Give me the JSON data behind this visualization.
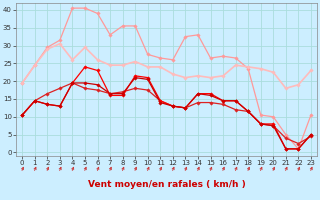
{
  "title": "",
  "xlabel": "Vent moyen/en rafales ( km/h )",
  "background_color": "#cceeff",
  "grid_color": "#aadddd",
  "x_ticks": [
    0,
    1,
    2,
    3,
    4,
    5,
    6,
    7,
    8,
    9,
    10,
    11,
    12,
    13,
    14,
    15,
    16,
    17,
    18,
    19,
    20,
    21,
    22,
    23
  ],
  "ylim": [
    -1,
    42
  ],
  "yticks": [
    0,
    5,
    10,
    15,
    20,
    25,
    30,
    35,
    40
  ],
  "lines": [
    {
      "x": [
        0,
        1,
        2,
        3,
        4,
        5,
        6,
        7,
        8,
        9,
        10,
        11,
        12,
        13,
        14,
        15,
        16,
        17,
        18,
        19,
        20,
        21,
        22,
        23
      ],
      "y": [
        19.5,
        24.5,
        29.5,
        31.5,
        40.5,
        40.5,
        39.0,
        33.0,
        35.5,
        35.5,
        27.5,
        26.5,
        26.0,
        32.5,
        33.0,
        26.5,
        27.0,
        26.5,
        23.5,
        10.5,
        10.0,
        5.0,
        1.0,
        10.5
      ],
      "color": "#ff9999",
      "linewidth": 0.9,
      "marker": "D",
      "markersize": 1.8
    },
    {
      "x": [
        0,
        1,
        2,
        3,
        4,
        5,
        6,
        7,
        8,
        9,
        10,
        11,
        12,
        13,
        14,
        15,
        16,
        17,
        18,
        19,
        20,
        21,
        22,
        23
      ],
      "y": [
        19.5,
        24.5,
        29.0,
        30.5,
        26.0,
        29.5,
        26.0,
        24.5,
        24.5,
        25.5,
        24.0,
        24.0,
        22.0,
        21.0,
        21.5,
        21.0,
        21.5,
        24.5,
        24.0,
        23.5,
        22.5,
        18.0,
        19.0,
        23.0
      ],
      "color": "#ffbbbb",
      "linewidth": 1.2,
      "marker": "D",
      "markersize": 1.8
    },
    {
      "x": [
        0,
        1,
        2,
        3,
        4,
        5,
        6,
        7,
        8,
        9,
        10,
        11,
        12,
        13,
        14,
        15,
        16,
        17,
        18,
        19,
        20,
        21,
        22,
        23
      ],
      "y": [
        10.5,
        14.5,
        16.5,
        18.0,
        19.5,
        18.0,
        17.5,
        16.5,
        17.0,
        18.0,
        17.5,
        14.5,
        13.0,
        12.5,
        14.0,
        14.0,
        13.5,
        12.0,
        11.5,
        8.0,
        7.5,
        4.0,
        2.5,
        4.5
      ],
      "color": "#dd2222",
      "linewidth": 0.9,
      "marker": "D",
      "markersize": 1.8
    },
    {
      "x": [
        0,
        1,
        2,
        3,
        4,
        5,
        6,
        7,
        8,
        9,
        10,
        11,
        12,
        13,
        14,
        15,
        16,
        17,
        18,
        19,
        20,
        21,
        22,
        23
      ],
      "y": [
        10.5,
        14.5,
        13.5,
        13.0,
        19.5,
        24.0,
        23.0,
        16.0,
        16.0,
        21.5,
        21.0,
        14.5,
        13.0,
        12.5,
        16.5,
        16.5,
        14.5,
        14.5,
        11.5,
        8.0,
        8.0,
        1.0,
        1.0,
        5.0
      ],
      "color": "#ff0000",
      "linewidth": 0.9,
      "marker": "D",
      "markersize": 1.8
    },
    {
      "x": [
        0,
        1,
        2,
        3,
        4,
        5,
        6,
        7,
        8,
        9,
        10,
        11,
        12,
        13,
        14,
        15,
        16,
        17,
        18,
        19,
        20,
        21,
        22,
        23
      ],
      "y": [
        10.5,
        14.5,
        13.5,
        13.0,
        19.5,
        19.5,
        19.0,
        16.5,
        16.5,
        21.0,
        20.5,
        14.0,
        13.0,
        12.5,
        16.5,
        16.0,
        14.5,
        14.5,
        11.5,
        8.0,
        7.5,
        1.0,
        1.0,
        5.0
      ],
      "color": "#cc0000",
      "linewidth": 0.9,
      "marker": "D",
      "markersize": 1.8
    }
  ],
  "arrow_color": "#cc3333",
  "tick_fontsize": 5,
  "label_fontsize": 6.5
}
